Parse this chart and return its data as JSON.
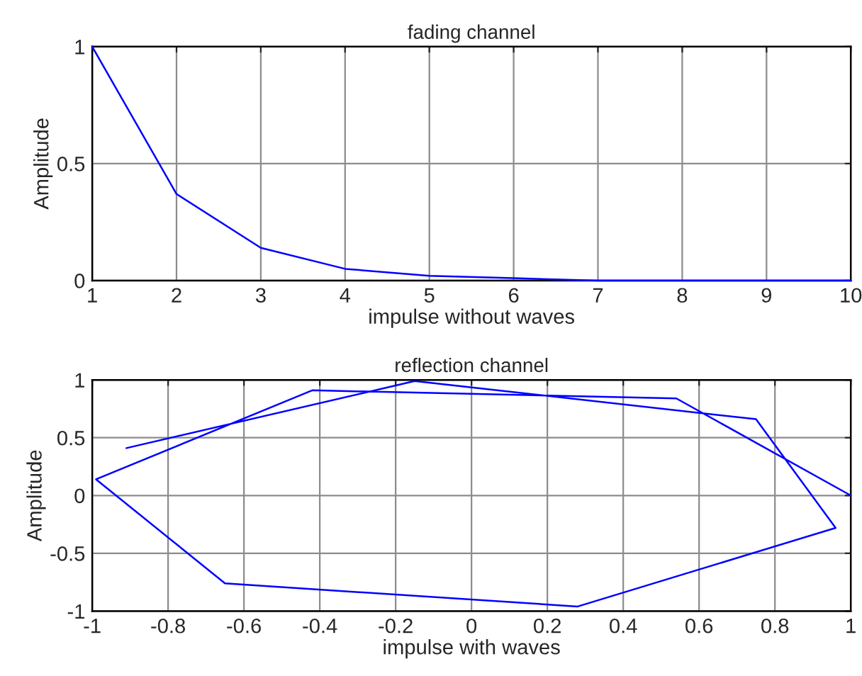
{
  "chart_data": [
    {
      "type": "line",
      "title": "fading channel",
      "xlabel": "impulse without waves",
      "ylabel": "Amplitude",
      "x": [
        1,
        2,
        3,
        4,
        5,
        6,
        7,
        8,
        9,
        10
      ],
      "series": [
        {
          "color": "#0000ff",
          "values": [
            1,
            0.37,
            0.14,
            0.05,
            0.02,
            0.01,
            0,
            0,
            0,
            0
          ]
        }
      ],
      "xlim": [
        1,
        10
      ],
      "xticks": [
        1,
        2,
        3,
        4,
        5,
        6,
        7,
        8,
        9,
        10
      ],
      "ylim": [
        0,
        1
      ],
      "yticks": [
        0,
        0.5,
        1
      ],
      "grid": true
    },
    {
      "type": "line",
      "title": "reflection channel",
      "xlabel": "impulse with waves",
      "ylabel": "Amplitude",
      "series": [
        {
          "color": "#0000ff",
          "x": [
            1,
            0.54,
            -0.42,
            -0.99,
            -0.65,
            0.28,
            0.96,
            0.75,
            -0.15,
            -0.91
          ],
          "values": [
            0,
            0.84,
            0.91,
            0.14,
            -0.76,
            -0.96,
            -0.28,
            0.66,
            0.99,
            0.41
          ]
        }
      ],
      "xlim": [
        -1,
        1
      ],
      "xticks": [
        -1,
        -0.8,
        -0.6,
        -0.4,
        -0.2,
        0,
        0.2,
        0.4,
        0.6,
        0.8,
        1
      ],
      "ylim": [
        -1,
        1
      ],
      "yticks": [
        -1,
        -0.5,
        0,
        0.5,
        1
      ],
      "grid": true
    }
  ]
}
